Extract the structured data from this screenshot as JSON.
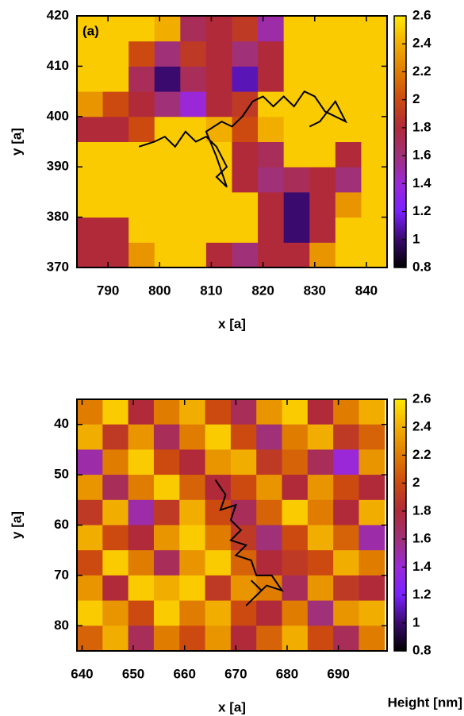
{
  "chart_data": [
    {
      "type": "heatmap",
      "annotation": "(a)",
      "xlabel": "x [a]",
      "ylabel": "y [a]",
      "xlim": [
        784,
        844
      ],
      "ylim": [
        370,
        420
      ],
      "xticks": [
        790,
        800,
        810,
        820,
        830,
        840
      ],
      "yticks": [
        370,
        380,
        390,
        400,
        410,
        420
      ],
      "zlim": [
        0.8,
        2.6
      ],
      "zticks": [
        0.8,
        1,
        1.2,
        1.4,
        1.6,
        1.8,
        2,
        2.2,
        2.4,
        2.6
      ],
      "colormap": [
        "#000000",
        "#3a0a6e",
        "#7a20ff",
        "#9a28d8",
        "#a03078",
        "#b02a3a",
        "#cc4a10",
        "#e07c00",
        "#f2ae00",
        "#ffe800"
      ],
      "x": [
        786.5,
        791.5,
        796.5,
        801.5,
        806.5,
        811.5,
        816.5,
        821.5,
        826.5,
        831.5,
        836.5,
        841.5
      ],
      "y": [
        372.5,
        377.5,
        382.5,
        387.5,
        392.5,
        397.5,
        402.5,
        407.5,
        412.5,
        417.5
      ],
      "z": [
        [
          1.8,
          1.8,
          2.3,
          2.5,
          2.5,
          1.8,
          1.6,
          1.8,
          1.8,
          2.3,
          2.5,
          2.5
        ],
        [
          1.8,
          1.8,
          2.5,
          2.5,
          2.5,
          2.5,
          2.5,
          1.8,
          1.0,
          1.8,
          2.5,
          2.5
        ],
        [
          2.5,
          2.5,
          2.5,
          2.5,
          2.5,
          2.5,
          2.5,
          1.8,
          1.0,
          1.8,
          2.3,
          2.5
        ],
        [
          2.5,
          2.5,
          2.5,
          2.5,
          2.5,
          2.5,
          1.8,
          1.6,
          1.7,
          1.8,
          1.6,
          2.5
        ],
        [
          2.5,
          2.5,
          2.5,
          2.5,
          2.5,
          2.5,
          1.8,
          1.7,
          2.5,
          2.5,
          1.8,
          2.5
        ],
        [
          1.8,
          1.8,
          2.0,
          2.5,
          2.5,
          2.4,
          2.0,
          2.4,
          2.5,
          2.5,
          2.5,
          2.5
        ],
        [
          2.3,
          2.0,
          1.8,
          1.6,
          1.4,
          1.8,
          1.9,
          2.5,
          2.5,
          2.5,
          2.5,
          2.5
        ],
        [
          2.5,
          2.5,
          1.7,
          1.0,
          1.7,
          1.8,
          1.1,
          1.8,
          2.5,
          2.5,
          2.5,
          2.5
        ],
        [
          2.5,
          2.5,
          2.0,
          1.6,
          1.9,
          1.8,
          1.6,
          1.8,
          2.5,
          2.5,
          2.5,
          2.5
        ],
        [
          2.5,
          2.5,
          2.5,
          2.4,
          1.7,
          1.8,
          1.9,
          1.5,
          2.5,
          2.5,
          2.5,
          2.5
        ]
      ],
      "series": [
        {
          "color": "#000000",
          "x": [
            796,
            799,
            801,
            803,
            805,
            807,
            809,
            811,
            813,
            811,
            813,
            811,
            809,
            812,
            814,
            816,
            818,
            820,
            822,
            824,
            826,
            828,
            830,
            832,
            834,
            836,
            834,
            831,
            829
          ],
          "y": [
            394,
            395,
            396,
            394,
            397,
            395,
            396,
            394,
            390,
            388,
            386,
            392,
            397,
            399,
            398,
            400,
            403,
            404,
            402,
            404,
            402,
            405,
            404,
            401,
            400,
            399,
            403,
            399,
            398
          ]
        }
      ]
    },
    {
      "type": "heatmap",
      "xlabel": "x [a]",
      "ylabel": "y [a]",
      "colorbar_label": "Height [nm]",
      "xlim": [
        639,
        699.5
      ],
      "ylim": [
        85,
        35
      ],
      "xticks": [
        640,
        650,
        660,
        670,
        680,
        690
      ],
      "yticks": [
        40,
        50,
        60,
        70,
        80
      ],
      "zlim": [
        0.8,
        2.6
      ],
      "zticks": [
        0.8,
        1,
        1.2,
        1.4,
        1.6,
        1.8,
        2,
        2.2,
        2.4,
        2.6
      ],
      "colormap": [
        "#000000",
        "#3a0a6e",
        "#7a20ff",
        "#9a28d8",
        "#a03078",
        "#b02a3a",
        "#cc4a10",
        "#e07c00",
        "#f2ae00",
        "#ffe800"
      ],
      "x": [
        641.5,
        646.5,
        651.5,
        656.5,
        661.5,
        666.5,
        671.5,
        676.5,
        681.5,
        686.5,
        691.5,
        696.5
      ],
      "y": [
        37.5,
        42.5,
        47.5,
        52.5,
        57.5,
        62.5,
        67.5,
        72.5,
        77.5,
        82.5
      ],
      "z": [
        [
          2.2,
          2.5,
          1.8,
          2.2,
          2.4,
          2.0,
          1.7,
          2.3,
          2.5,
          1.8,
          2.2,
          2.4
        ],
        [
          2.4,
          1.9,
          2.3,
          1.7,
          2.2,
          2.5,
          2.0,
          1.6,
          2.2,
          2.4,
          1.9,
          2.1
        ],
        [
          1.5,
          2.2,
          2.5,
          2.0,
          1.8,
          2.3,
          2.4,
          1.9,
          2.1,
          1.7,
          1.4,
          2.3
        ],
        [
          2.3,
          1.7,
          2.2,
          2.5,
          2.1,
          1.8,
          2.0,
          2.3,
          1.8,
          2.3,
          2.0,
          1.8
        ],
        [
          1.9,
          2.4,
          1.5,
          1.9,
          2.4,
          2.0,
          1.7,
          2.1,
          2.5,
          2.2,
          1.8,
          2.4
        ],
        [
          2.4,
          2.0,
          1.8,
          2.3,
          2.5,
          2.2,
          1.9,
          1.6,
          2.0,
          2.4,
          2.1,
          1.5
        ],
        [
          2.0,
          2.5,
          2.2,
          1.7,
          2.3,
          2.5,
          2.1,
          1.8,
          1.9,
          2.0,
          2.4,
          2.2
        ],
        [
          2.3,
          1.8,
          2.5,
          2.4,
          2.5,
          1.9,
          2.3,
          2.2,
          1.7,
          2.3,
          1.9,
          1.8
        ],
        [
          2.5,
          2.3,
          2.0,
          2.5,
          2.2,
          2.4,
          2.0,
          1.8,
          2.2,
          1.6,
          2.3,
          2.4
        ],
        [
          2.1,
          2.4,
          1.7,
          2.2,
          2.0,
          2.3,
          1.8,
          2.1,
          2.4,
          2.0,
          1.7,
          2.2
        ]
      ],
      "series": [
        {
          "color": "#000000",
          "x": [
            666,
            668,
            667,
            670,
            669,
            671,
            669,
            672,
            670,
            673,
            674,
            677,
            679,
            676,
            674,
            672,
            675,
            673
          ],
          "y": [
            51,
            54,
            57,
            56,
            59,
            61,
            63,
            64,
            66,
            67,
            70,
            70,
            73,
            72,
            74,
            76,
            73,
            71
          ]
        }
      ]
    }
  ]
}
